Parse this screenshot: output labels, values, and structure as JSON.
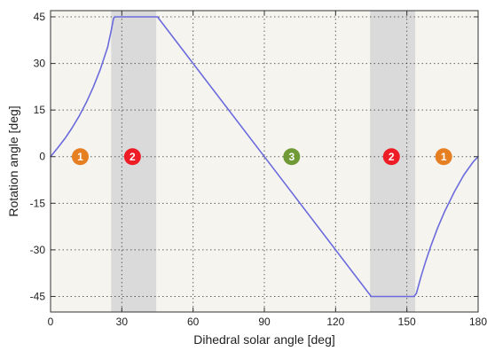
{
  "chart_data": {
    "type": "line",
    "title": "",
    "xlabel": "Dihedral solar angle [deg]",
    "ylabel": "Rotation angle [deg]",
    "xlim": [
      0,
      180
    ],
    "ylim": [
      -50,
      47
    ],
    "grid": true,
    "grid_style": "dotted",
    "x_ticks": [
      0,
      30,
      60,
      90,
      120,
      150,
      180
    ],
    "y_ticks": [
      45,
      30,
      15,
      0,
      -15,
      -30,
      -45
    ],
    "x_tick_labels": [
      "0",
      "30",
      "60",
      "90",
      "120",
      "150",
      "180"
    ],
    "y_tick_labels": [
      "45",
      "30",
      "15",
      "0",
      "-15",
      "-30",
      "-45"
    ],
    "series": [
      {
        "color": "#6b6bdd",
        "x": [
          0,
          3,
          6,
          9,
          12,
          15,
          18,
          21,
          24,
          25.5,
          26.5,
          27,
          45,
          90,
          135,
          153,
          154,
          156,
          158,
          160,
          163,
          166,
          170,
          174,
          178,
          180
        ],
        "y": [
          0,
          2.8,
          5.8,
          9.2,
          13,
          17.4,
          22.4,
          28.2,
          35.2,
          40.5,
          44.5,
          45,
          45,
          0,
          -45,
          -45,
          -44,
          -38.5,
          -33.5,
          -29,
          -22.8,
          -17.5,
          -11.3,
          -5.9,
          -1.6,
          0
        ]
      }
    ],
    "shaded_regions": [
      {
        "x": [
          25.5,
          44.5
        ],
        "color": "#dadada"
      },
      {
        "x": [
          134.5,
          153.5
        ],
        "color": "#dadada"
      }
    ],
    "annotations": [
      {
        "x": 12.5,
        "y": 0,
        "label": "1",
        "color": "#e67e22"
      },
      {
        "x": 34.5,
        "y": 0,
        "label": "2",
        "color": "#ee1c24"
      },
      {
        "x": 101.5,
        "y": 0,
        "label": "3",
        "color": "#6f9a35"
      },
      {
        "x": 143.5,
        "y": 0,
        "label": "2",
        "color": "#ee1c24"
      },
      {
        "x": 165.5,
        "y": 0,
        "label": "1",
        "color": "#e67e22"
      }
    ],
    "plot_background": "#f5f4ef",
    "axis_color": "#333333",
    "grid_color": "#333333"
  }
}
